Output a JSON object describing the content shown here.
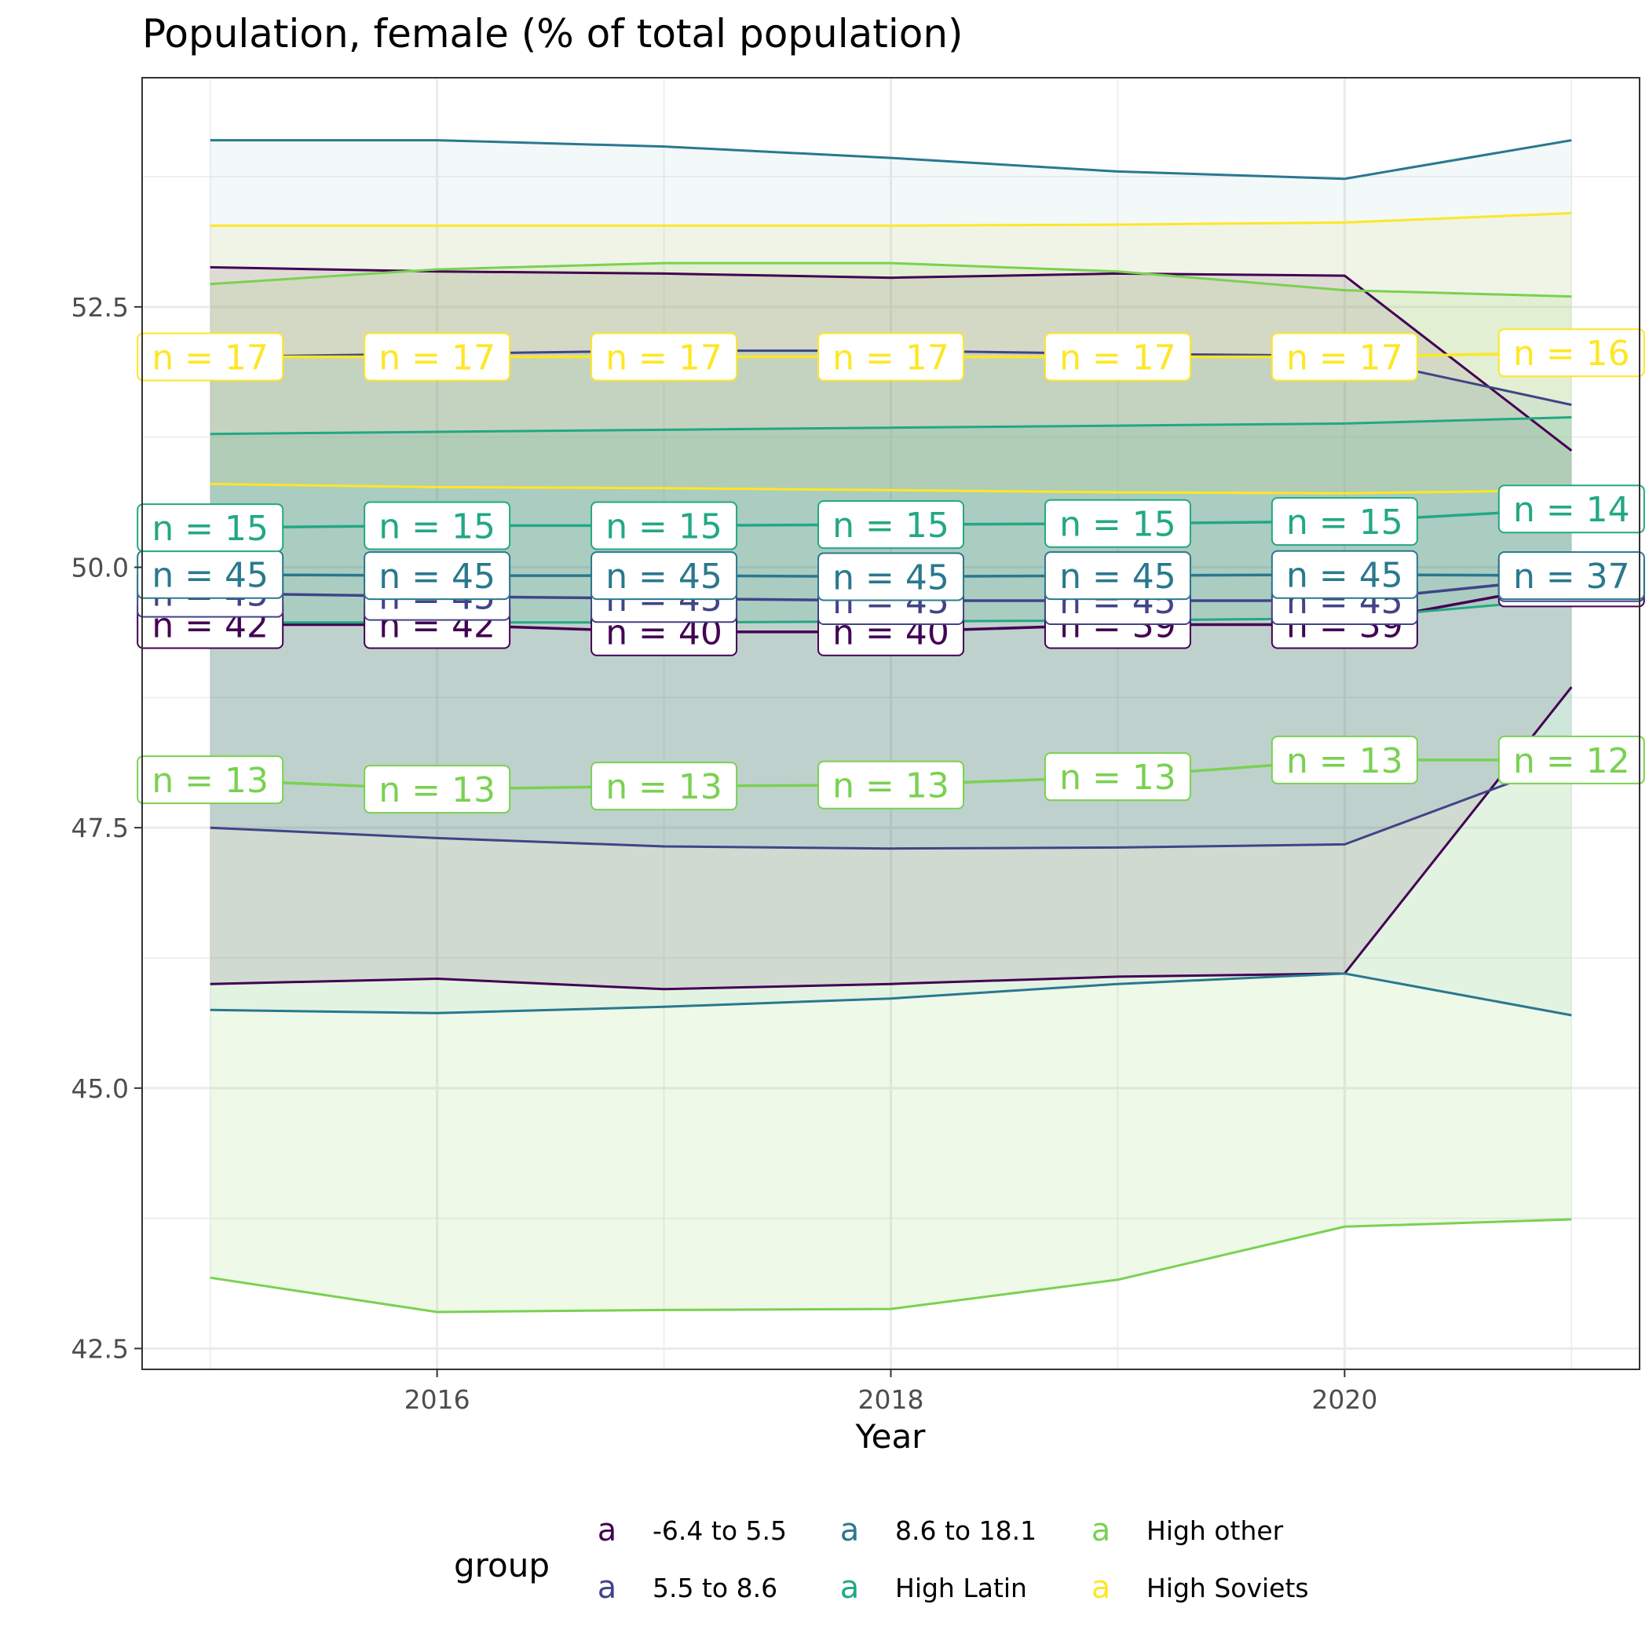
{
  "colors": {
    "-6.4 to 5.5": "#440154",
    "5.5 to 8.6": "#414487",
    "8.6 to 18.1": "#2A788E",
    "High Latin": "#22A884",
    "High other": "#7AD151",
    "High Soviets": "#FDE725"
  },
  "chart_data": {
    "type": "line",
    "title": "Population, female (% of total population)",
    "xlabel": "Year",
    "ylabel": "",
    "x": [
      2015,
      2016,
      2017,
      2018,
      2019,
      2020,
      2021
    ],
    "xticks": [
      2016,
      2018,
      2020
    ],
    "xlim": [
      2014.7,
      2021.3
    ],
    "yticks": [
      42.5,
      45.0,
      47.5,
      50.0,
      52.5
    ],
    "ylim": [
      42.3,
      54.7
    ],
    "grid": true,
    "legend": {
      "title": "group",
      "position": "bottom",
      "symbol": "a",
      "entries": [
        "-6.4 to 5.5",
        "5.5 to 8.6",
        "8.6 to 18.1",
        "High Latin",
        "High other",
        "High Soviets"
      ]
    },
    "series": [
      {
        "name": "-6.4 to 5.5",
        "mean": [
          49.45,
          49.45,
          49.38,
          49.38,
          49.45,
          49.45,
          49.85
        ],
        "upper": [
          52.88,
          52.84,
          52.82,
          52.78,
          52.82,
          52.8,
          51.12
        ],
        "lower": [
          46.0,
          46.05,
          45.95,
          46.0,
          46.07,
          46.1,
          48.85
        ],
        "n_labels": [
          "n = 42",
          "n = 42",
          "n = 40",
          "n = 40",
          "n = 39",
          "n = 39",
          "n = 37"
        ],
        "band_fill": "#440154"
      },
      {
        "name": "5.5 to 8.6",
        "mean": [
          49.75,
          49.72,
          49.7,
          49.68,
          49.68,
          49.68,
          49.9
        ],
        "upper": [
          52.02,
          52.05,
          52.08,
          52.08,
          52.05,
          52.03,
          51.56
        ],
        "lower": [
          47.5,
          47.4,
          47.32,
          47.3,
          47.31,
          47.34,
          48.15
        ],
        "n_labels": [
          "n = 45",
          "n = 45",
          "n = 45",
          "n = 45",
          "n = 45",
          "n = 45",
          "n = 37"
        ],
        "band_fill": "#3E79C4"
      },
      {
        "name": "8.6 to 18.1",
        "mean": [
          49.93,
          49.92,
          49.92,
          49.91,
          49.92,
          49.93,
          49.92
        ],
        "upper": [
          54.1,
          54.1,
          54.04,
          53.93,
          53.8,
          53.73,
          54.1
        ],
        "lower": [
          45.75,
          45.72,
          45.78,
          45.86,
          46.0,
          46.1,
          45.7
        ],
        "n_labels": [
          "n = 45",
          "n = 45",
          "n = 45",
          "n = 45",
          "n = 45",
          "n = 45",
          "n = 37"
        ],
        "band_fill": "#9BD2CC"
      },
      {
        "name": "High Latin",
        "mean": [
          50.38,
          50.4,
          50.4,
          50.41,
          50.42,
          50.44,
          50.56
        ],
        "upper": [
          51.28,
          51.3,
          51.32,
          51.34,
          51.36,
          51.38,
          51.44
        ],
        "lower": [
          49.47,
          49.47,
          49.47,
          49.48,
          49.49,
          49.51,
          49.7
        ],
        "n_labels": [
          "n = 15",
          "n = 15",
          "n = 15",
          "n = 15",
          "n = 15",
          "n = 15",
          "n = 14"
        ],
        "band_fill": "#22A884"
      },
      {
        "name": "High other",
        "mean": [
          47.96,
          47.87,
          47.9,
          47.91,
          47.99,
          48.15,
          48.15
        ],
        "upper": [
          52.72,
          52.86,
          52.92,
          52.92,
          52.84,
          52.66,
          52.6
        ],
        "lower": [
          43.18,
          42.85,
          42.87,
          42.88,
          43.16,
          43.67,
          43.74
        ],
        "n_labels": [
          "n = 13",
          "n = 13",
          "n = 13",
          "n = 13",
          "n = 13",
          "n = 13",
          "n = 12"
        ],
        "band_fill": "#7AD151"
      },
      {
        "name": "High Soviets",
        "mean": [
          52.02,
          52.02,
          52.02,
          52.02,
          52.02,
          52.02,
          52.06
        ],
        "upper": [
          53.28,
          53.28,
          53.28,
          53.28,
          53.29,
          53.31,
          53.4
        ],
        "lower": [
          50.8,
          50.77,
          50.76,
          50.74,
          50.72,
          50.71,
          50.74
        ],
        "n_labels": [
          "n = 17",
          "n = 17",
          "n = 17",
          "n = 17",
          "n = 17",
          "n = 17",
          "n = 16"
        ],
        "band_fill": "#E5D873"
      }
    ]
  }
}
